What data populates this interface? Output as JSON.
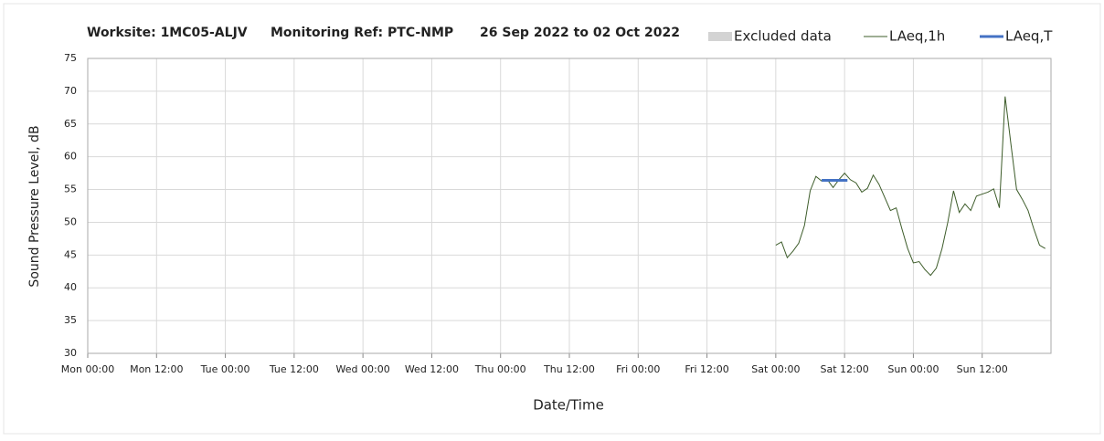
{
  "chart_data": {
    "type": "line",
    "title": "Worksite: 1MC05-ALJV",
    "subtitle": "Monitoring Ref: PTC-NMP",
    "date_range": "26 Sep 2022 to 02 Oct 2022",
    "x_label": "Date/Time",
    "y_label": "Sound Pressure Level, dB",
    "xlim": [
      0,
      168
    ],
    "xticks": [
      {
        "value": 0,
        "label": "Mon 00:00"
      },
      {
        "value": 12,
        "label": "Mon 12:00"
      },
      {
        "value": 24,
        "label": "Tue 00:00"
      },
      {
        "value": 36,
        "label": "Tue 12:00"
      },
      {
        "value": 48,
        "label": "Wed 00:00"
      },
      {
        "value": 60,
        "label": "Wed 12:00"
      },
      {
        "value": 72,
        "label": "Thu 00:00"
      },
      {
        "value": 84,
        "label": "Thu 12:00"
      },
      {
        "value": 96,
        "label": "Fri 00:00"
      },
      {
        "value": 108,
        "label": "Fri 12:00"
      },
      {
        "value": 120,
        "label": "Sat 00:00"
      },
      {
        "value": 132,
        "label": "Sat 12:00"
      },
      {
        "value": 144,
        "label": "Sun 00:00"
      },
      {
        "value": 156,
        "label": "Sun 12:00"
      }
    ],
    "ylim": [
      30,
      75
    ],
    "yticks": [
      30,
      35,
      40,
      45,
      50,
      55,
      60,
      65,
      70,
      75
    ],
    "grid": true,
    "legend": "top-right",
    "series": [
      {
        "name": "Excluded data",
        "color": "#d3d3d3",
        "x": [],
        "values": []
      },
      {
        "name": "LAeq,1h",
        "color": "#3d5c2a",
        "x": [
          120,
          121,
          122,
          123,
          124,
          125,
          126,
          127,
          128,
          129,
          130,
          131,
          132,
          133,
          134,
          135,
          136,
          137,
          138,
          139,
          140,
          141,
          142,
          143,
          144,
          145,
          146,
          147,
          148,
          149,
          150,
          151,
          152,
          153,
          154,
          155,
          156,
          157,
          158,
          159,
          160,
          161,
          162,
          163,
          164,
          165,
          166,
          167
        ],
        "values": [
          46.5,
          47,
          44.6,
          45.6,
          46.8,
          49.5,
          54.8,
          57,
          56.3,
          56.5,
          55.3,
          56.5,
          57.5,
          56.5,
          56,
          54.6,
          55.2,
          57.2,
          55.8,
          53.8,
          51.8,
          52.2,
          49,
          46,
          43.8,
          44,
          42.8,
          41.9,
          43,
          46,
          50,
          54.8,
          51.5,
          52.8,
          51.8,
          54,
          54.3,
          54.6,
          55.1,
          52.2,
          69.2,
          62,
          55,
          53.5,
          51.8,
          49,
          46.5,
          46
        ]
      },
      {
        "name": "LAeq,T",
        "color": "#4472c4",
        "x": [
          128,
          132.5
        ],
        "values": [
          56.4,
          56.4
        ]
      }
    ]
  }
}
